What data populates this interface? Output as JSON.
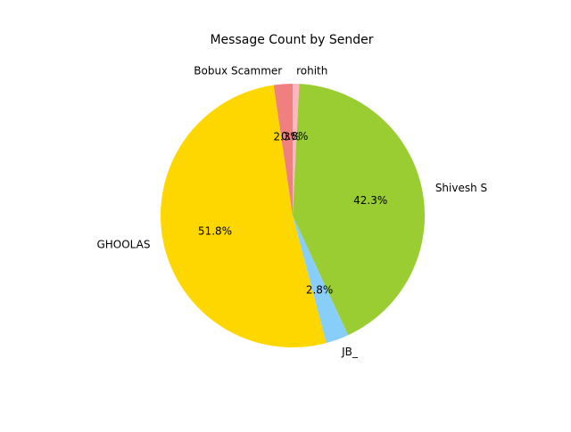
{
  "chart_data": {
    "type": "pie",
    "title": "Message Count by Sender",
    "slices": [
      {
        "label": "rohith",
        "percent_text": "0.8%",
        "value": 0.8,
        "color": "#ffb6c1"
      },
      {
        "label": "Shivesh S",
        "percent_text": "42.3%",
        "value": 42.3,
        "color": "#9acd32"
      },
      {
        "label": "JB_",
        "percent_text": "2.8%",
        "value": 2.8,
        "color": "#87cefa"
      },
      {
        "label": "GHOOLAS",
        "percent_text": "51.8%",
        "value": 51.8,
        "color": "#ffd700"
      },
      {
        "label": "Bobux Scammer",
        "percent_text": "2.3%",
        "value": 2.3,
        "color": "#f08080"
      }
    ],
    "start_angle_deg": 90,
    "direction": "clockwise"
  }
}
